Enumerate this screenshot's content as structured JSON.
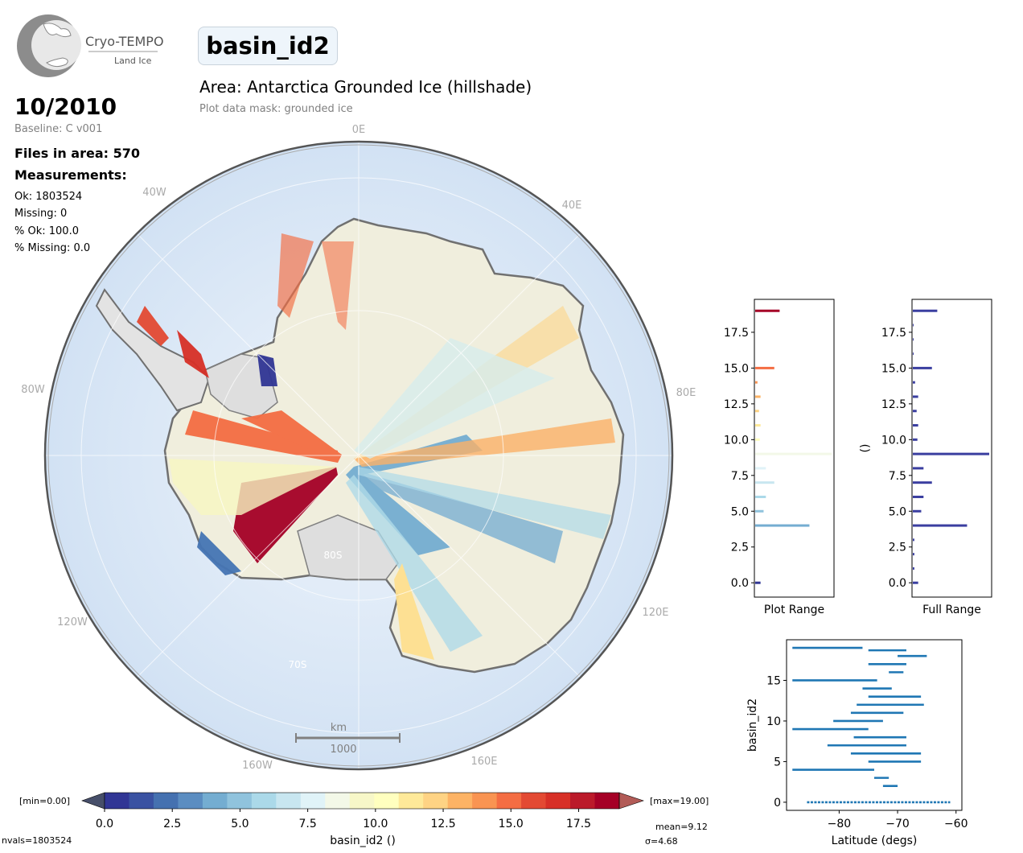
{
  "header": {
    "logo_name": "Cryo-TEMPO",
    "logo_sub": "Land Ice",
    "title": "basin_id2",
    "area_title": "Area: Antarctica Grounded Ice (hillshade)",
    "mask": "Plot data mask: grounded ice"
  },
  "info": {
    "date": "10/2010",
    "baseline": "Baseline: C v001",
    "files": "Files in area: 570",
    "measurements": "Measurements:",
    "ok": "Ok: 1803524",
    "missing": "Missing: 0",
    "pct_ok": "% Ok: 100.0",
    "pct_missing": "% Missing: 0.0"
  },
  "map": {
    "lon_labels": [
      "0E",
      "40E",
      "80E",
      "120E",
      "160E",
      "160W",
      "120W",
      "80W",
      "40W"
    ],
    "lat_labels": [
      "80S",
      "70S"
    ],
    "scale_unit": "km",
    "scale_value": "1000"
  },
  "colorbar": {
    "min_label": "[min=0.00]",
    "max_label": "[max=19.00]",
    "ticks": [
      "0.0",
      "2.5",
      "5.0",
      "7.5",
      "10.0",
      "12.5",
      "15.0",
      "17.5"
    ],
    "label": "basin_id2 ()",
    "nvals": "nvals=1803524",
    "mean": "mean=9.12",
    "sigma": "σ=4.68",
    "colors": [
      "#313695",
      "#3a52a2",
      "#4571b0",
      "#5b8dc1",
      "#74add1",
      "#90c3dd",
      "#abd9e9",
      "#c8e6f0",
      "#e0f3f8",
      "#f3f8e8",
      "#f7f7c8",
      "#ffffbf",
      "#fee999",
      "#fed384",
      "#fdb365",
      "#f99452",
      "#f46d43",
      "#e34a33",
      "#d73027",
      "#bb1a2a",
      "#a50026"
    ],
    "under_color": "#474f6a",
    "over_color": "#b25b57"
  },
  "chart_data": [
    {
      "type": "bar",
      "orientation": "horizontal",
      "xlabel": "Plot Range",
      "yticks": [
        "0.0",
        "2.5",
        "5.0",
        "7.5",
        "10.0",
        "12.5",
        "15.0",
        "17.5"
      ],
      "ylim": [
        -1,
        19.8
      ],
      "categories": [
        0,
        1,
        2,
        3,
        4,
        5,
        6,
        7,
        8,
        9,
        10,
        11,
        12,
        13,
        14,
        15,
        16,
        17,
        18,
        19
      ],
      "values": [
        0.07,
        0,
        0,
        0,
        0.71,
        0.11,
        0.14,
        0.25,
        0.14,
        1.0,
        0.06,
        0.07,
        0.05,
        0.07,
        0.03,
        0.25,
        0,
        0,
        0,
        0.32
      ]
    },
    {
      "type": "bar",
      "orientation": "horizontal",
      "xlabel": "Full Range",
      "ylabel": "()",
      "yticks": [
        "0.0",
        "2.5",
        "5.0",
        "7.5",
        "10.0",
        "12.5",
        "15.0",
        "17.5"
      ],
      "ylim": [
        -1,
        19.8
      ],
      "categories": [
        0,
        1,
        2,
        3,
        4,
        5,
        6,
        7,
        8,
        9,
        10,
        11,
        12,
        13,
        14,
        15,
        16,
        17,
        18,
        19
      ],
      "values": [
        0.07,
        0.02,
        0.02,
        0.02,
        0.71,
        0.11,
        0.14,
        0.25,
        0.14,
        1.0,
        0.06,
        0.07,
        0.05,
        0.07,
        0.03,
        0.25,
        0.01,
        0.01,
        0.01,
        0.32
      ]
    },
    {
      "type": "scatter",
      "xlabel": "Latitude (degs)",
      "ylabel": "basin_id2",
      "xlim": [
        -89,
        -59
      ],
      "ylim": [
        -1,
        20
      ],
      "xticks": [
        -80,
        -70,
        -60
      ],
      "yticks": [
        0,
        5,
        10,
        15
      ],
      "ranges": [
        {
          "y": 0,
          "x0": -85.5,
          "x1": -61
        },
        {
          "y": 2,
          "x0": -72.5,
          "x1": -70
        },
        {
          "y": 3,
          "x0": -74,
          "x1": -71.5
        },
        {
          "y": 4,
          "x0": -88,
          "x1": -74
        },
        {
          "y": 5,
          "x0": -75,
          "x1": -66
        },
        {
          "y": 6,
          "x0": -78,
          "x1": -66
        },
        {
          "y": 7,
          "x0": -82,
          "x1": -68.5
        },
        {
          "y": 8,
          "x0": -77.5,
          "x1": -68.5
        },
        {
          "y": 9,
          "x0": -88,
          "x1": -75
        },
        {
          "y": 10,
          "x0": -81,
          "x1": -72.5
        },
        {
          "y": 11,
          "x0": -78,
          "x1": -69
        },
        {
          "y": 12,
          "x0": -77,
          "x1": -65.5
        },
        {
          "y": 13,
          "x0": -75,
          "x1": -66
        },
        {
          "y": 14,
          "x0": -76,
          "x1": -71
        },
        {
          "y": 15,
          "x0": -88,
          "x1": -73.5
        },
        {
          "y": 16,
          "x0": -71.5,
          "x1": -69
        },
        {
          "y": 17,
          "x0": -75,
          "x1": -68.5
        },
        {
          "y": 18,
          "x0": -70,
          "x1": -65
        },
        {
          "y": 18.7,
          "x0": -75,
          "x1": -68.5
        },
        {
          "y": 19,
          "x0": -88,
          "x1": -76
        }
      ]
    }
  ]
}
